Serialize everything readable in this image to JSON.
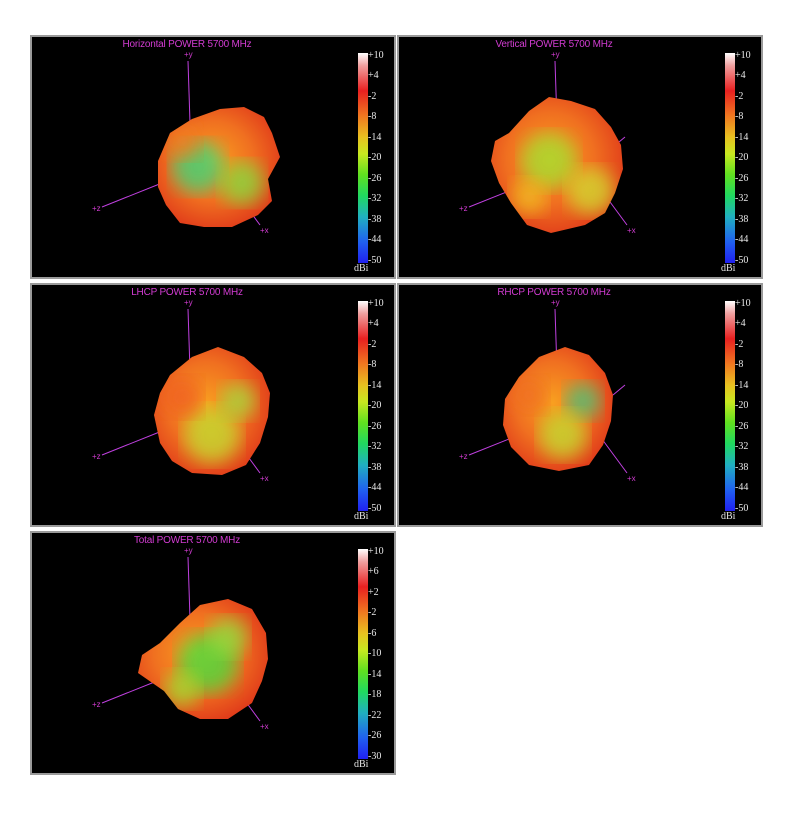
{
  "chart_data": [
    {
      "type": "3d-radiation-pattern",
      "title": "Horizontal POWER 5700  MHz",
      "unit": "dBi",
      "scale_ticks": [
        "+10",
        "+4",
        "-2",
        "-8",
        "-14",
        "-20",
        "-26",
        "-32",
        "-38",
        "-44",
        "-50"
      ],
      "axes": [
        "+y",
        "+z",
        "+x"
      ]
    },
    {
      "type": "3d-radiation-pattern",
      "title": "Vertical POWER 5700  MHz",
      "unit": "dBi",
      "scale_ticks": [
        "+10",
        "+4",
        "-2",
        "-8",
        "-14",
        "-20",
        "-26",
        "-32",
        "-38",
        "-44",
        "-50"
      ],
      "axes": [
        "+y",
        "+z",
        "+x"
      ]
    },
    {
      "type": "3d-radiation-pattern",
      "title": "LHCP POWER 5700  MHz",
      "unit": "dBi",
      "scale_ticks": [
        "+10",
        "+4",
        "-2",
        "-8",
        "-14",
        "-20",
        "-26",
        "-32",
        "-38",
        "-44",
        "-50"
      ],
      "axes": [
        "+y",
        "+z",
        "+x"
      ]
    },
    {
      "type": "3d-radiation-pattern",
      "title": "RHCP POWER 5700  MHz",
      "unit": "dBi",
      "scale_ticks": [
        "+10",
        "+4",
        "-2",
        "-8",
        "-14",
        "-20",
        "-26",
        "-32",
        "-38",
        "-44",
        "-50"
      ],
      "axes": [
        "+y",
        "+z",
        "+x"
      ]
    },
    {
      "type": "3d-radiation-pattern",
      "title": "Total POWER 5700  MHz",
      "unit": "dBi",
      "scale_ticks": [
        "+10",
        "+6",
        "+2",
        "-2",
        "-6",
        "-10",
        "-14",
        "-18",
        "-22",
        "-26",
        "-30"
      ],
      "axes": [
        "+y",
        "+z",
        "+x"
      ]
    }
  ],
  "colors": {
    "title": "#d23cd2",
    "axis": "#c040e0",
    "background": "#000000",
    "scale_top": "#ffffff",
    "scale_bottom": "#2020f0"
  }
}
